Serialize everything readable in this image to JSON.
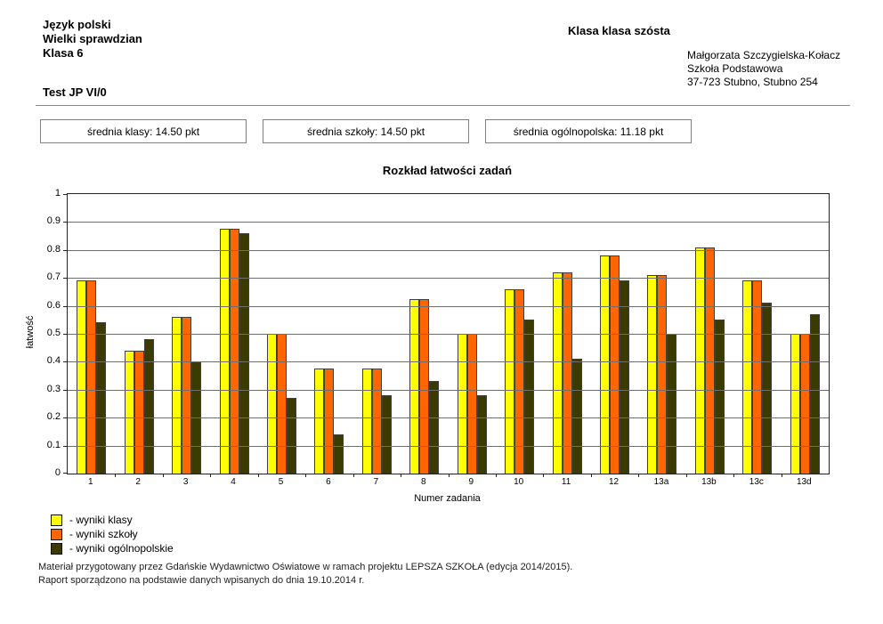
{
  "header": {
    "left_lines": [
      "Język polski",
      "Wielki sprawdzian",
      "Klasa 6"
    ],
    "test_label": "Test JP VI/0",
    "class_title": "Klasa klasa szósta",
    "right_lines": [
      "Małgorzata Szczygielska-Kołacz",
      "Szkoła Podstawowa",
      "37-723 Stubno, Stubno 254"
    ]
  },
  "summary_boxes": [
    {
      "label": "średnia klasy: 14.50 pkt"
    },
    {
      "label": "średnia szkoły: 14.50 pkt"
    },
    {
      "label": "średnia ogólnopolska: 11.18 pkt"
    }
  ],
  "chart_data": {
    "type": "bar",
    "title": "Rozkład łatwości zadań",
    "xlabel": "Numer zadania",
    "ylabel": "łatwość",
    "ylim": [
      0,
      1
    ],
    "grid": true,
    "legend_position": "below-left",
    "categories": [
      "1",
      "2",
      "3",
      "4",
      "5",
      "6",
      "7",
      "8",
      "9",
      "10",
      "11",
      "12",
      "13a",
      "13b",
      "13c",
      "13d"
    ],
    "yticks": [
      {
        "v": 0,
        "label": "0"
      },
      {
        "v": 0.1,
        "label": "0.1"
      },
      {
        "v": 0.2,
        "label": "0.2"
      },
      {
        "v": 0.3,
        "label": "0.3"
      },
      {
        "v": 0.4,
        "label": "0.4"
      },
      {
        "v": 0.5,
        "label": "0.5"
      },
      {
        "v": 0.6,
        "label": "0.6"
      },
      {
        "v": 0.7,
        "label": "0.7"
      },
      {
        "v": 0.8,
        "label": "0.8"
      },
      {
        "v": 0.9,
        "label": "0.9"
      },
      {
        "v": 1,
        "label": "1"
      }
    ],
    "series": [
      {
        "name": "wyniki klasy",
        "color": "#FFFF00",
        "values": [
          0.69,
          0.44,
          0.56,
          0.875,
          0.5,
          0.375,
          0.375,
          0.625,
          0.5,
          0.66,
          0.72,
          0.78,
          0.71,
          0.81,
          0.69,
          0.5
        ]
      },
      {
        "name": "wyniki szkoły",
        "color": "#FF6600",
        "values": [
          0.69,
          0.44,
          0.56,
          0.875,
          0.5,
          0.375,
          0.375,
          0.625,
          0.5,
          0.66,
          0.72,
          0.78,
          0.71,
          0.81,
          0.69,
          0.5
        ]
      },
      {
        "name": "wyniki ogólnopolskie",
        "color": "#3B3B00",
        "values": [
          0.54,
          0.48,
          0.4,
          0.86,
          0.27,
          0.14,
          0.28,
          0.33,
          0.28,
          0.55,
          0.41,
          0.69,
          0.5,
          0.55,
          0.61,
          0.57
        ]
      }
    ]
  },
  "legend": {
    "items": [
      {
        "label": "- wyniki klasy"
      },
      {
        "label": "- wyniki szkoły"
      },
      {
        "label": "- wyniki ogólnopolskie"
      }
    ]
  },
  "footer": {
    "line1": "Materiał przygotowany przez Gdańskie Wydawnictwo Oświatowe w ramach projektu LEPSZA SZKOŁA (edycja 2014/2015).",
    "line2": "Raport sporządzono na podstawie danych wpisanych do dnia 19.10.2014 r."
  }
}
